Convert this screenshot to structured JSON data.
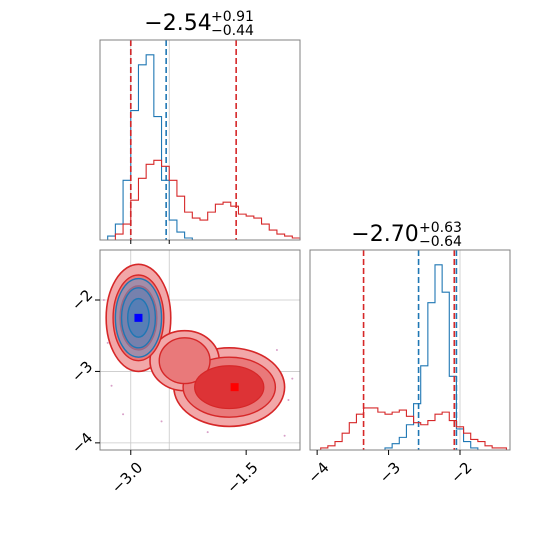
{
  "chart_data": {
    "type": "corner",
    "colors": {
      "blue": "#1f77b4",
      "red": "#d62728",
      "grid": "#c8c8c8",
      "axis": "#808080"
    },
    "panels": [
      {
        "id": "hist_param1",
        "type": "histogram",
        "title": {
          "value": "−2.54",
          "sup": "+0.91",
          "sub": "−0.44"
        },
        "xlim": [
          -3.4,
          -0.8
        ],
        "series": [
          {
            "name": "",
            "color": "#1f77b4",
            "x": [
              -3.35,
              -3.25,
              -3.15,
              -3.05,
              -2.95,
              -2.85,
              -2.75,
              -2.65,
              -2.55,
              -2.45,
              -2.35,
              -2.25,
              -2.15,
              -2.05,
              -1.95,
              -1.85,
              -1.75
            ],
            "y": [
              0.0,
              0.02,
              0.08,
              0.3,
              0.65,
              0.88,
              0.93,
              0.62,
              0.3,
              0.1,
              0.04,
              0.01,
              0.0,
              0.0,
              0.0,
              0.0,
              0.0
            ],
            "quantile_lines": [
              -3.0,
              -2.54
            ]
          },
          {
            "name": "",
            "color": "#d62728",
            "x": [
              -3.35,
              -3.25,
              -3.15,
              -3.05,
              -2.95,
              -2.85,
              -2.75,
              -2.65,
              -2.55,
              -2.45,
              -2.35,
              -2.25,
              -2.15,
              -2.05,
              -1.95,
              -1.85,
              -1.75,
              -1.65,
              -1.55,
              -1.45,
              -1.35,
              -1.25,
              -1.15,
              -1.05,
              -0.95,
              -0.85
            ],
            "y": [
              0.0,
              0.0,
              0.03,
              0.08,
              0.2,
              0.31,
              0.38,
              0.4,
              0.37,
              0.3,
              0.22,
              0.14,
              0.11,
              0.1,
              0.14,
              0.18,
              0.19,
              0.17,
              0.13,
              0.12,
              0.11,
              0.08,
              0.05,
              0.03,
              0.02,
              0.01
            ],
            "quantile_lines": [
              -3.0,
              -1.63
            ]
          }
        ],
        "vlines": [
          -3.0,
          -2.5
        ],
        "hlines": []
      },
      {
        "id": "hist_param2",
        "type": "histogram",
        "title": {
          "value": "−2.70",
          "sup": "+0.63",
          "sub": "−0.64"
        },
        "xlim": [
          -4.1,
          -1.3
        ],
        "xticks": [
          -4,
          -3,
          -2
        ],
        "xtick_labels": [
          "−4",
          "−3",
          "−2"
        ],
        "series": [
          {
            "name": "",
            "color": "#1f77b4",
            "x": [
              -3.1,
              -3.0,
              -2.9,
              -2.8,
              -2.7,
              -2.6,
              -2.5,
              -2.4,
              -2.3,
              -2.2,
              -2.1,
              -2.0,
              -1.9,
              -1.8,
              -1.7
            ],
            "y": [
              0.0,
              0.01,
              0.03,
              0.06,
              0.12,
              0.22,
              0.4,
              0.7,
              0.88,
              0.75,
              0.35,
              0.1,
              0.04,
              0.01,
              0.0
            ],
            "quantile_lines": [
              -2.58,
              -2.05
            ]
          },
          {
            "name": "",
            "color": "#d62728",
            "x": [
              -4.0,
              -3.9,
              -3.8,
              -3.7,
              -3.6,
              -3.5,
              -3.4,
              -3.3,
              -3.2,
              -3.1,
              -3.0,
              -2.9,
              -2.8,
              -2.7,
              -2.6,
              -2.5,
              -2.4,
              -2.3,
              -2.2,
              -2.1,
              -2.0,
              -1.9,
              -1.8,
              -1.7,
              -1.6,
              -1.5,
              -1.4
            ],
            "y": [
              0.0,
              0.01,
              0.02,
              0.04,
              0.08,
              0.13,
              0.17,
              0.2,
              0.2,
              0.18,
              0.17,
              0.18,
              0.19,
              0.16,
              0.13,
              0.12,
              0.14,
              0.17,
              0.18,
              0.14,
              0.11,
              0.08,
              0.05,
              0.04,
              0.02,
              0.01,
              0.01
            ],
            "quantile_lines": [
              -3.35,
              -2.08
            ]
          }
        ],
        "vlines": [
          -2.0
        ],
        "hlines": []
      },
      {
        "id": "scatter_2d",
        "type": "contour",
        "xlim": [
          -3.4,
          -0.8
        ],
        "ylim": [
          -4.1,
          -1.3
        ],
        "xticks": [
          -3.0,
          -1.5
        ],
        "xtick_labels": [
          "−3.0",
          "−1.5"
        ],
        "yticks": [
          -2,
          -3,
          -4
        ],
        "ytick_labels": [
          "−2",
          "−3",
          "−4"
        ],
        "series": [
          {
            "name": "",
            "color": "#1f77b4",
            "peaks": [
              {
                "x": -2.9,
                "y": -2.25,
                "weight": 1.0
              }
            ]
          },
          {
            "name": "",
            "color": "#d62728",
            "peaks": [
              {
                "x": -2.9,
                "y": -2.25,
                "weight": 0.55
              },
              {
                "x": -1.7,
                "y": -3.25,
                "weight": 0.45
              }
            ]
          }
        ],
        "markers": [
          {
            "x": -2.9,
            "y": -2.25,
            "color": "#0000ff"
          },
          {
            "x": -1.65,
            "y": -3.22,
            "color": "#ff0000"
          }
        ],
        "vlines": [
          -3.0,
          -2.5
        ],
        "hlines": [
          -2.0,
          -3.0,
          -4.0
        ]
      }
    ]
  }
}
